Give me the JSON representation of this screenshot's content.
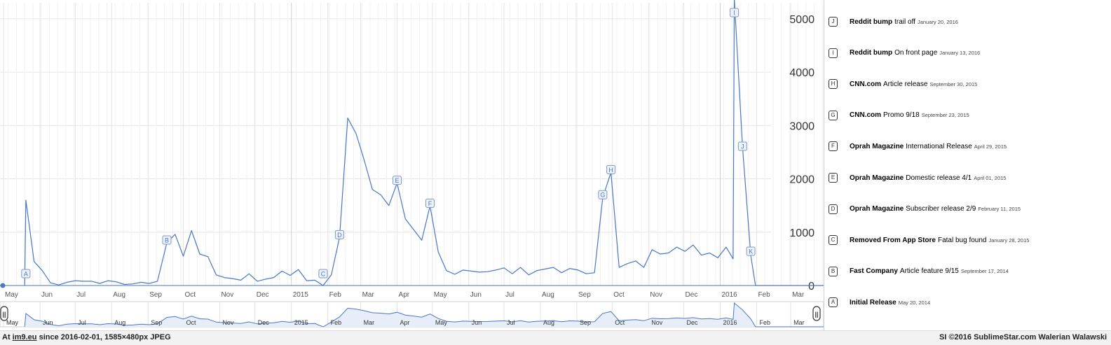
{
  "chart_data": {
    "type": "line",
    "title": "",
    "xlabel": "",
    "ylabel": "",
    "ylim": [
      0,
      5300
    ],
    "y_ticks": [
      0,
      1000,
      2000,
      3000,
      4000,
      5000
    ],
    "y_axis_side": "right",
    "grid": true,
    "x_ticks": [
      {
        "label": "May",
        "date": "2014-05-01"
      },
      {
        "label": "Jun",
        "date": "2014-06-01"
      },
      {
        "label": "Jul",
        "date": "2014-07-01"
      },
      {
        "label": "Aug",
        "date": "2014-08-01"
      },
      {
        "label": "Sep",
        "date": "2014-09-01"
      },
      {
        "label": "Oct",
        "date": "2014-10-01"
      },
      {
        "label": "Nov",
        "date": "2014-11-01"
      },
      {
        "label": "Dec",
        "date": "2014-12-01"
      },
      {
        "label": "2015",
        "date": "2015-01-01"
      },
      {
        "label": "Feb",
        "date": "2015-02-01"
      },
      {
        "label": "Mar",
        "date": "2015-03-01"
      },
      {
        "label": "Apr",
        "date": "2015-04-01"
      },
      {
        "label": "May",
        "date": "2015-05-01"
      },
      {
        "label": "Jun",
        "date": "2015-06-01"
      },
      {
        "label": "Jul",
        "date": "2015-07-01"
      },
      {
        "label": "Aug",
        "date": "2015-08-01"
      },
      {
        "label": "Sep",
        "date": "2015-09-01"
      },
      {
        "label": "Oct",
        "date": "2015-10-01"
      },
      {
        "label": "Nov",
        "date": "2015-11-01"
      },
      {
        "label": "Dec",
        "date": "2015-12-01"
      },
      {
        "label": "2016",
        "date": "2016-01-01"
      },
      {
        "label": "Feb",
        "date": "2016-02-01"
      },
      {
        "label": "Mar",
        "date": "2016-03-01"
      }
    ],
    "xlim": [
      "2014-04-28",
      "2016-03-29"
    ],
    "series": [
      {
        "color": "#4a76c7",
        "points": [
          [
            "2014-05-19",
            0
          ],
          [
            "2014-05-20",
            1600
          ],
          [
            "2014-05-27",
            450
          ],
          [
            "2014-06-03",
            280
          ],
          [
            "2014-06-10",
            50
          ],
          [
            "2014-06-17",
            10
          ],
          [
            "2014-06-24",
            60
          ],
          [
            "2014-07-01",
            90
          ],
          [
            "2014-07-08",
            80
          ],
          [
            "2014-07-15",
            80
          ],
          [
            "2014-07-22",
            40
          ],
          [
            "2014-07-29",
            90
          ],
          [
            "2014-08-05",
            70
          ],
          [
            "2014-08-12",
            20
          ],
          [
            "2014-08-19",
            30
          ],
          [
            "2014-08-26",
            60
          ],
          [
            "2014-09-02",
            40
          ],
          [
            "2014-09-09",
            80
          ],
          [
            "2014-09-17",
            800
          ],
          [
            "2014-09-24",
            960
          ],
          [
            "2014-10-01",
            550
          ],
          [
            "2014-10-08",
            1030
          ],
          [
            "2014-10-15",
            590
          ],
          [
            "2014-10-22",
            540
          ],
          [
            "2014-10-29",
            200
          ],
          [
            "2014-11-05",
            150
          ],
          [
            "2014-11-12",
            130
          ],
          [
            "2014-11-19",
            100
          ],
          [
            "2014-11-26",
            220
          ],
          [
            "2014-12-03",
            80
          ],
          [
            "2014-12-10",
            120
          ],
          [
            "2014-12-17",
            150
          ],
          [
            "2014-12-24",
            270
          ],
          [
            "2014-12-31",
            190
          ],
          [
            "2015-01-07",
            300
          ],
          [
            "2015-01-14",
            90
          ],
          [
            "2015-01-21",
            100
          ],
          [
            "2015-01-28",
            0
          ],
          [
            "2015-02-04",
            200
          ],
          [
            "2015-02-11",
            900
          ],
          [
            "2015-02-18",
            3140
          ],
          [
            "2015-02-25",
            2850
          ],
          [
            "2015-03-04",
            2350
          ],
          [
            "2015-03-11",
            1800
          ],
          [
            "2015-03-18",
            1700
          ],
          [
            "2015-03-25",
            1500
          ],
          [
            "2015-04-01",
            1920
          ],
          [
            "2015-04-08",
            1250
          ],
          [
            "2015-04-15",
            1050
          ],
          [
            "2015-04-22",
            850
          ],
          [
            "2015-04-29",
            1490
          ],
          [
            "2015-05-06",
            630
          ],
          [
            "2015-05-13",
            280
          ],
          [
            "2015-05-20",
            210
          ],
          [
            "2015-05-27",
            290
          ],
          [
            "2015-06-03",
            270
          ],
          [
            "2015-06-10",
            250
          ],
          [
            "2015-06-17",
            260
          ],
          [
            "2015-06-24",
            290
          ],
          [
            "2015-07-01",
            330
          ],
          [
            "2015-07-08",
            220
          ],
          [
            "2015-07-15",
            340
          ],
          [
            "2015-07-22",
            200
          ],
          [
            "2015-07-29",
            280
          ],
          [
            "2015-08-05",
            310
          ],
          [
            "2015-08-12",
            340
          ],
          [
            "2015-08-19",
            240
          ],
          [
            "2015-08-26",
            320
          ],
          [
            "2015-09-02",
            290
          ],
          [
            "2015-09-09",
            220
          ],
          [
            "2015-09-16",
            240
          ],
          [
            "2015-09-23",
            1650
          ],
          [
            "2015-09-30",
            2120
          ],
          [
            "2015-10-07",
            340
          ],
          [
            "2015-10-14",
            410
          ],
          [
            "2015-10-21",
            460
          ],
          [
            "2015-10-28",
            340
          ],
          [
            "2015-11-04",
            670
          ],
          [
            "2015-11-11",
            590
          ],
          [
            "2015-11-18",
            610
          ],
          [
            "2015-11-25",
            720
          ],
          [
            "2015-12-02",
            640
          ],
          [
            "2015-12-09",
            760
          ],
          [
            "2015-12-16",
            570
          ],
          [
            "2015-12-23",
            610
          ],
          [
            "2015-12-30",
            520
          ],
          [
            "2016-01-06",
            720
          ],
          [
            "2016-01-12",
            500
          ],
          [
            "2016-01-13",
            5380
          ],
          [
            "2016-01-20",
            2600
          ],
          [
            "2016-01-27",
            560
          ],
          [
            "2016-01-31",
            0
          ],
          [
            "2016-03-29",
            0
          ]
        ]
      }
    ],
    "annotations": [
      {
        "letter": "A",
        "date": "2014-05-20",
        "source": "Initial Release",
        "text": "",
        "label_date": "May 20, 2014"
      },
      {
        "letter": "B",
        "date": "2014-09-17",
        "source": "Fast Company",
        "text": "Article feature 9/15",
        "label_date": "September 17, 2014"
      },
      {
        "letter": "C",
        "date": "2015-01-28",
        "source": "Removed From App Store",
        "text": "Fatal bug found",
        "label_date": "January 28, 2015"
      },
      {
        "letter": "D",
        "date": "2015-02-11",
        "source": "Oprah Magazine",
        "text": "Subscriber release 2/9",
        "label_date": "February 11, 2015"
      },
      {
        "letter": "E",
        "date": "2015-04-01",
        "source": "Oprah Magazine",
        "text": "Domestic release 4/1",
        "label_date": "April 01, 2015"
      },
      {
        "letter": "F",
        "date": "2015-04-29",
        "source": "Oprah Magazine",
        "text": "International Release",
        "label_date": "April 29, 2015"
      },
      {
        "letter": "G",
        "date": "2015-09-23",
        "source": "CNN.com",
        "text": "Promo 9/18",
        "label_date": "September 23, 2015"
      },
      {
        "letter": "H",
        "date": "2015-09-30",
        "source": "CNN.com",
        "text": "Article release",
        "label_date": "September 30, 2015"
      },
      {
        "letter": "I",
        "date": "2016-01-13",
        "source": "Reddit bump",
        "text": "On front page",
        "label_date": "January 13, 2016"
      },
      {
        "letter": "J",
        "date": "2016-01-20",
        "source": "Reddit bump",
        "text": "trail off",
        "label_date": "January 20, 2016"
      },
      {
        "letter": "K",
        "date": "2016-01-27",
        "source": "",
        "text": "",
        "label_date": ""
      }
    ]
  },
  "annotation_panel": [
    {
      "letter": "J",
      "source": "Reddit bump",
      "text": "trail off",
      "date": "January 20, 2016"
    },
    {
      "letter": "I",
      "source": "Reddit bump",
      "text": "On front page",
      "date": "January 13, 2016"
    },
    {
      "letter": "H",
      "source": "CNN.com",
      "text": "Article release",
      "date": "September 30, 2015"
    },
    {
      "letter": "G",
      "source": "CNN.com",
      "text": "Promo 9/18",
      "date": "September 23, 2015"
    },
    {
      "letter": "F",
      "source": "Oprah Magazine",
      "text": "International Release",
      "date": "April 29, 2015"
    },
    {
      "letter": "E",
      "source": "Oprah Magazine",
      "text": "Domestic release 4/1",
      "date": "April 01, 2015"
    },
    {
      "letter": "D",
      "source": "Oprah Magazine",
      "text": "Subscriber release 2/9",
      "date": "February 11, 2015"
    },
    {
      "letter": "C",
      "source": "Removed From App Store",
      "text": "Fatal bug found",
      "date": "January 28, 2015"
    },
    {
      "letter": "B",
      "source": "Fast Company",
      "text": "Article feature 9/15",
      "date": "September 17, 2014"
    },
    {
      "letter": "A",
      "source": "Initial Release",
      "text": "",
      "date": "May 20, 2014"
    }
  ],
  "range_selector": {
    "handle_glyph": "||",
    "ticks": [
      {
        "label": "May",
        "date": "2014-05-01"
      },
      {
        "label": "Jun",
        "date": "2014-06-01"
      },
      {
        "label": "Jul",
        "date": "2014-07-01"
      },
      {
        "label": "Aug",
        "date": "2014-08-01"
      },
      {
        "label": "Sep",
        "date": "2014-09-01"
      },
      {
        "label": "Oct",
        "date": "2014-10-01"
      },
      {
        "label": "Nov",
        "date": "2014-11-01"
      },
      {
        "label": "Dec",
        "date": "2014-12-01"
      },
      {
        "label": "2015",
        "date": "2015-01-01"
      },
      {
        "label": "Feb",
        "date": "2015-02-01"
      },
      {
        "label": "Mar",
        "date": "2015-03-01"
      },
      {
        "label": "Apr",
        "date": "2015-04-01"
      },
      {
        "label": "May",
        "date": "2015-05-01"
      },
      {
        "label": "Jun",
        "date": "2015-06-01"
      },
      {
        "label": "Jul",
        "date": "2015-07-01"
      },
      {
        "label": "Aug",
        "date": "2015-08-01"
      },
      {
        "label": "Sep",
        "date": "2015-09-01"
      },
      {
        "label": "Oct",
        "date": "2015-10-01"
      },
      {
        "label": "Nov",
        "date": "2015-11-01"
      },
      {
        "label": "Dec",
        "date": "2015-12-01"
      },
      {
        "label": "2016",
        "date": "2016-01-01"
      },
      {
        "label": "Feb",
        "date": "2016-02-01"
      },
      {
        "label": "Mar",
        "date": "2016-03-01"
      }
    ]
  },
  "footer": {
    "prefix": "At",
    "site": "im9.eu",
    "info": "since 2016-02-01, 1585×480px JPEG",
    "credit": "SI ©2016 SublimeStar.com Walerian Walawski"
  },
  "colors": {
    "line": "#4a76c7",
    "fill": "#e8eef9",
    "grid": "#e6e6e6",
    "marker_fill": "#eef2fa",
    "marker_border": "#7f99c9"
  }
}
